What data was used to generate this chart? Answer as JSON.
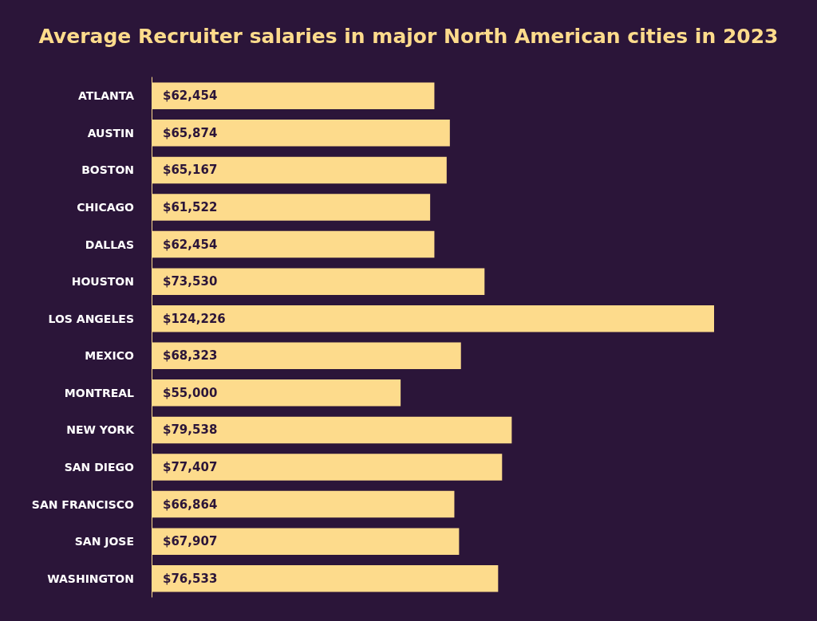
{
  "chart_data": {
    "type": "bar",
    "orientation": "horizontal",
    "title": "Average Recruiter salaries in major North American cities in 2023",
    "categories": [
      "ATLANTA",
      "AUSTIN",
      "BOSTON",
      "CHICAGO",
      "DALLAS",
      "HOUSTON",
      "LOS ANGELES",
      "MEXICO",
      "MONTREAL",
      "NEW YORK",
      "SAN DIEGO",
      "SAN FRANCISCO",
      "SAN JOSE",
      "WASHINGTON"
    ],
    "values": [
      62454,
      65874,
      65167,
      61522,
      62454,
      73530,
      124226,
      68323,
      55000,
      79538,
      77407,
      66864,
      67907,
      76533
    ],
    "value_labels": [
      "$62,454",
      "$65,874",
      "$65,167",
      "$61,522",
      "$62,454",
      "$73,530",
      "$124,226",
      "$68,323",
      "$55,000",
      "$79,538",
      "$77,407",
      "$66,864",
      "$67,907",
      "$76,533"
    ],
    "color": "#fddb8c"
  }
}
